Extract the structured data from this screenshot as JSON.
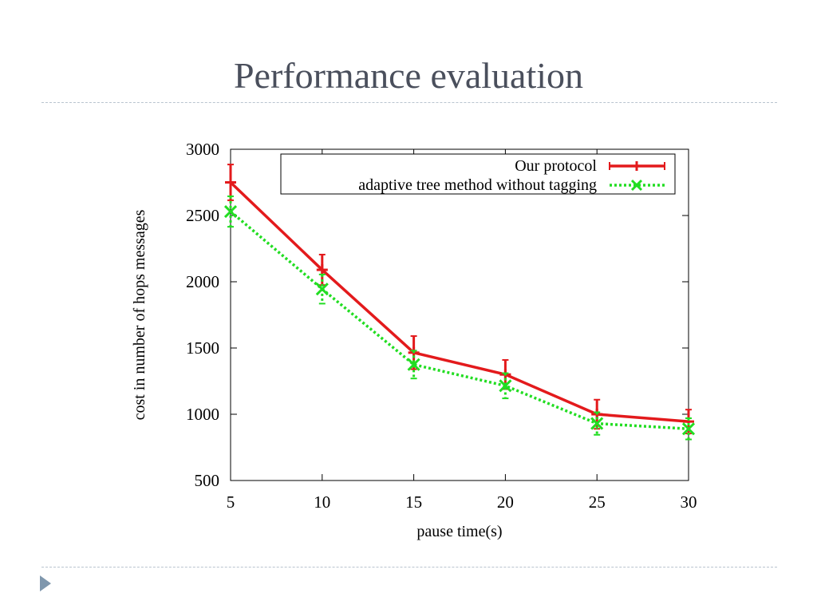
{
  "slide": {
    "title": "Performance evaluation",
    "bullet_icon": "triangle-bullet-icon"
  },
  "chart_data": {
    "type": "line",
    "title": "",
    "xlabel": "pause time(s)",
    "ylabel": "cost in number of hops messages",
    "x": [
      5,
      10,
      15,
      20,
      25,
      30
    ],
    "xticks": [
      "5",
      "10",
      "15",
      "20",
      "25",
      "30"
    ],
    "yticks": [
      "500",
      "1000",
      "1500",
      "2000",
      "2500",
      "3000"
    ],
    "xlim": [
      5,
      30
    ],
    "ylim": [
      500,
      3000
    ],
    "grid": false,
    "legend_position": "top-right",
    "series": [
      {
        "name": "Our protocol",
        "color": "#e31a1c",
        "style": "solid",
        "marker": "plus",
        "values": [
          2750,
          2090,
          1465,
          1300,
          1000,
          945
        ],
        "err": [
          135,
          115,
          125,
          110,
          110,
          90
        ]
      },
      {
        "name": "adaptive tree method without tagging",
        "color": "#22dd22",
        "style": "dotted",
        "marker": "x",
        "values": [
          2530,
          1945,
          1375,
          1215,
          930,
          890
        ],
        "err": [
          115,
          110,
          105,
          95,
          85,
          80
        ]
      }
    ]
  }
}
